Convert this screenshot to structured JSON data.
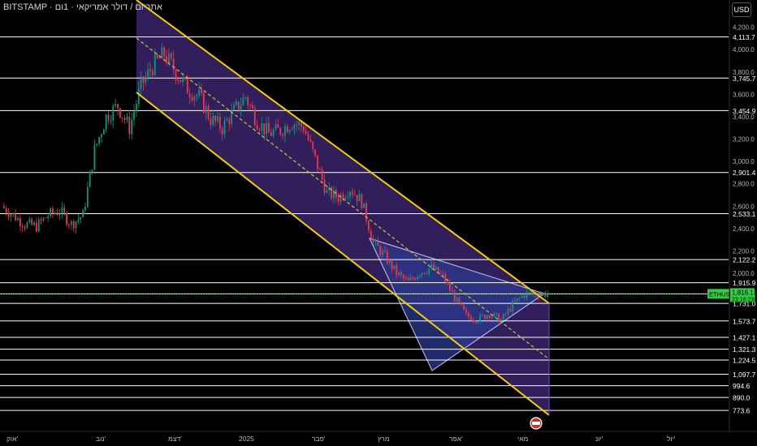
{
  "header": {
    "title": "BITSTAMP · אתריום / דולר אמריקאי · 1ום"
  },
  "currency_button": "USD",
  "colors": {
    "background": "#000000",
    "level_line": "#ffffff",
    "channel_line": "#f5d000",
    "channel_fill": "#4a2f8a",
    "triangle_fill": "#2b3a8c",
    "candle_up": "#089981",
    "candle_down": "#f23645",
    "price_badge": "#2ecc40"
  },
  "price_axis_ticks": [
    "4,200.0",
    "4,000.0",
    "3,800.0",
    "3,600.0",
    "3,400.0",
    "3,200.0",
    "3,000.0",
    "2,800.0",
    "2,600.0",
    "2,400.0",
    "2,200.0",
    "2,000.0"
  ],
  "levels": [
    "4,113.7",
    "3,745.7",
    "3,454.9",
    "2,901.4",
    "2,533.1",
    "2,122.2",
    "1,915.9",
    "1,816.1",
    "1,731.0",
    "1,573.7",
    "1,427.1",
    "1,321.3",
    "1,224.5",
    "1,097.7",
    "994.6",
    "890.0",
    "773.6"
  ],
  "price_badge": {
    "symbol": "ETHUSD",
    "price": "1,816.1",
    "countdown": "23:18:23"
  },
  "time_axis": [
    "אוק'",
    "נוב'",
    "דצמ'",
    "2025",
    "פבר'",
    "מרץ",
    "אפר'",
    "מאי",
    "יונ'",
    "יול'"
  ],
  "chart_data": {
    "type": "candlestick",
    "title": "BITSTAMP · אתריום / דולר אמריקאי · 1ום",
    "currency": "USD",
    "x_axis_labels": [
      "אוק'",
      "נוב'",
      "דצמ'",
      "2025",
      "פבר'",
      "מרץ",
      "אפר'",
      "מאי",
      "יונ'",
      "יול'"
    ],
    "horizontal_levels": [
      4113.7,
      3745.7,
      3454.9,
      2901.4,
      2533.1,
      2122.2,
      1915.9,
      1816.1,
      1731.0,
      1573.7,
      1427.1,
      1321.3,
      1224.5,
      1097.7,
      994.6,
      890.0,
      773.6
    ],
    "last_price": 1816.1,
    "close_path": [
      [
        0,
        2600
      ],
      [
        5,
        2520
      ],
      [
        10,
        2440
      ],
      [
        15,
        2420
      ],
      [
        20,
        2520
      ],
      [
        25,
        2560
      ],
      [
        30,
        2440
      ],
      [
        35,
        2520
      ],
      [
        40,
        3100
      ],
      [
        45,
        3400
      ],
      [
        50,
        3500
      ],
      [
        55,
        3300
      ],
      [
        60,
        3680
      ],
      [
        65,
        3850
      ],
      [
        70,
        3960
      ],
      [
        75,
        3800
      ],
      [
        80,
        3650
      ],
      [
        85,
        3580
      ],
      [
        90,
        3380
      ],
      [
        95,
        3300
      ],
      [
        100,
        3450
      ],
      [
        105,
        3580
      ],
      [
        110,
        3360
      ],
      [
        115,
        3250
      ],
      [
        120,
        3280
      ],
      [
        125,
        3350
      ],
      [
        130,
        3310
      ],
      [
        135,
        3020
      ],
      [
        140,
        2720
      ],
      [
        145,
        2680
      ],
      [
        150,
        2760
      ],
      [
        155,
        2640
      ],
      [
        160,
        2280
      ],
      [
        165,
        2150
      ],
      [
        170,
        2000
      ],
      [
        175,
        1920
      ],
      [
        180,
        2010
      ],
      [
        185,
        2050
      ],
      [
        190,
        1970
      ],
      [
        195,
        1780
      ],
      [
        200,
        1620
      ],
      [
        205,
        1590
      ],
      [
        210,
        1640
      ],
      [
        215,
        1580
      ],
      [
        220,
        1720
      ],
      [
        225,
        1810
      ],
      [
        230,
        1820
      ],
      [
        235,
        1816
      ]
    ],
    "close_path_units": "[day index since first candle, USD]"
  }
}
